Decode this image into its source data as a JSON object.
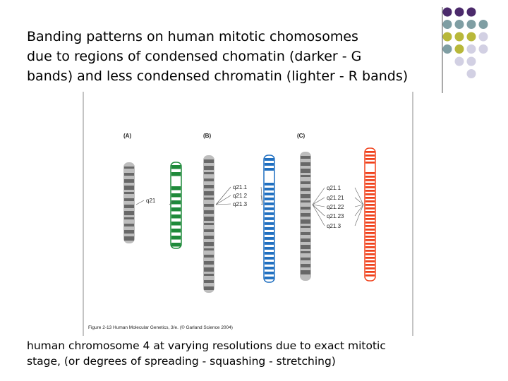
{
  "title": {
    "lines": [
      "Banding patterns on human mitotic chomosomes",
      "due to regions of condensed chomatin (darker - G",
      "bands) and less condensed chromatin (lighter - R bands)"
    ]
  },
  "figure": {
    "panels": [
      {
        "label": "(A)",
        "bands": [
          "q21"
        ]
      },
      {
        "label": "(B)",
        "bands": [
          "q21.1",
          "q21.2",
          "q21.3"
        ]
      },
      {
        "label": "(C)",
        "bands": [
          "q21.1",
          "q21.21",
          "q21.22",
          "q21.23",
          "q21.3"
        ]
      }
    ],
    "credit": "Figure 2-13  Human Molecular Genetics, 3/e. (© Garland Science 2004)"
  },
  "caption": {
    "lines": [
      "human chromosome 4 at varying resolutions due to exact mitotic",
      "stage, (or degrees of spreading - squashing - stretching)"
    ]
  }
}
